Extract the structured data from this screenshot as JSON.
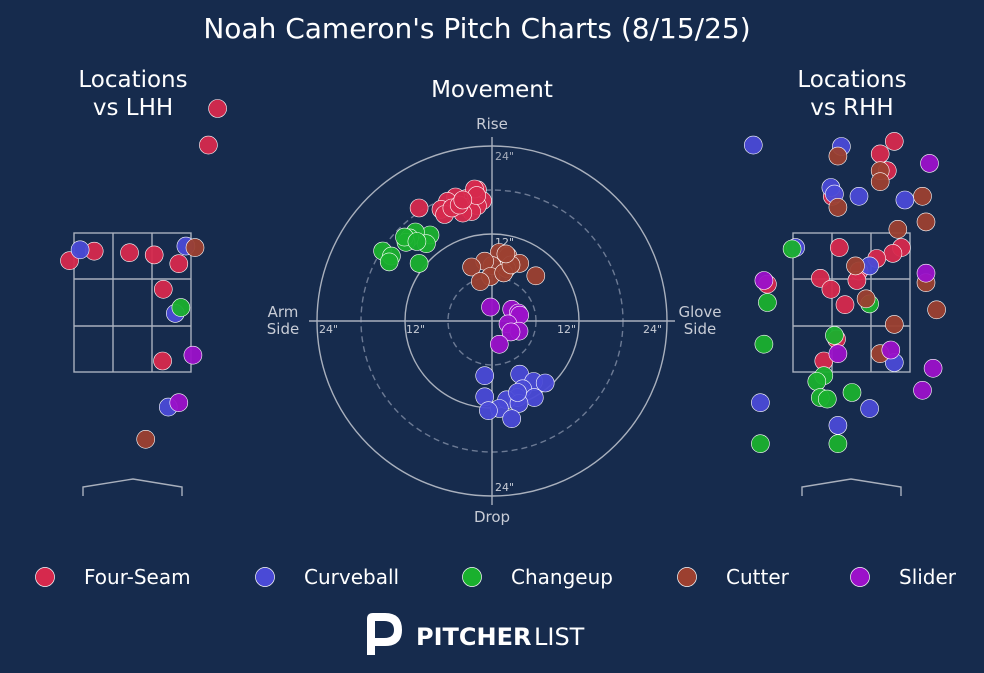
{
  "title": "Noah Cameron's Pitch Charts (8/15/25)",
  "panels": {
    "lhh": {
      "title_line1": "Locations",
      "title_line2": "vs LHH"
    },
    "movement": {
      "title": "Movement"
    },
    "rhh": {
      "title_line1": "Locations",
      "title_line2": "vs RHH"
    }
  },
  "movement_axes": {
    "top": "Rise",
    "bottom": "Drop",
    "left_line1": "Arm",
    "left_line2": "Side",
    "right_line1": "Glove",
    "right_line2": "Side",
    "ring_labels": {
      "top_24": "24\"",
      "top_12": "12\"",
      "bottom_24": "24\"",
      "left_24": "24\"",
      "left_12": "12\"",
      "right_12": "12\"",
      "right_24": "24\""
    }
  },
  "colors": {
    "Four-Seam": "#d6294d",
    "Curveball": "#4a4ad6",
    "Changeup": "#1ab02e",
    "Cutter": "#9c4030",
    "Slider": "#9b11c9"
  },
  "legend": [
    "Four-Seam",
    "Curveball",
    "Changeup",
    "Cutter",
    "Slider"
  ],
  "logo": {
    "bold": "PITCHER",
    "light": "LIST"
  },
  "chart_data": [
    {
      "type": "scatter",
      "title": "Locations vs LHH",
      "units": "feet (horizontal plate location, height)",
      "xlim": [
        -1.5,
        1.5
      ],
      "ylim": [
        0.2,
        5.2
      ],
      "strike_zone": {
        "x": [
          -0.83,
          0.83
        ],
        "y": [
          1.6,
          3.5
        ]
      },
      "points": [
        {
          "pitch": "Four-Seam",
          "x": 1.2,
          "y": 5.2
        },
        {
          "pitch": "Four-Seam",
          "x": 1.07,
          "y": 4.7
        },
        {
          "pitch": "Four-Seam",
          "x": -0.55,
          "y": 3.25
        },
        {
          "pitch": "Four-Seam",
          "x": -0.05,
          "y": 3.23
        },
        {
          "pitch": "Four-Seam",
          "x": 0.3,
          "y": 3.2
        },
        {
          "pitch": "Four-Seam",
          "x": -0.9,
          "y": 3.12
        },
        {
          "pitch": "Four-Seam",
          "x": 0.65,
          "y": 3.08
        },
        {
          "pitch": "Four-Seam",
          "x": 0.43,
          "y": 2.73
        },
        {
          "pitch": "Four-Seam",
          "x": 0.42,
          "y": 1.75
        },
        {
          "pitch": "Curveball",
          "x": -0.75,
          "y": 3.27
        },
        {
          "pitch": "Curveball",
          "x": 0.75,
          "y": 3.32
        },
        {
          "pitch": "Curveball",
          "x": 0.6,
          "y": 2.4
        },
        {
          "pitch": "Curveball",
          "x": 0.5,
          "y": 1.12
        },
        {
          "pitch": "Changeup",
          "x": 0.68,
          "y": 2.48
        },
        {
          "pitch": "Cutter",
          "x": 0.88,
          "y": 3.3
        },
        {
          "pitch": "Cutter",
          "x": 0.18,
          "y": 0.68
        },
        {
          "pitch": "Slider",
          "x": 0.85,
          "y": 1.83
        },
        {
          "pitch": "Slider",
          "x": 0.65,
          "y": 1.18
        }
      ]
    },
    {
      "type": "scatter",
      "title": "Movement",
      "units": "inches (horizontal break, induced vertical break)",
      "xlim": [
        -24,
        24
      ],
      "ylim": [
        -24,
        24
      ],
      "points": [
        {
          "pitch": "Four-Seam",
          "x": -2,
          "y": 18
        },
        {
          "pitch": "Four-Seam",
          "x": -2.3,
          "y": 17
        },
        {
          "pitch": "Four-Seam",
          "x": -1.3,
          "y": 16.5
        },
        {
          "pitch": "Four-Seam",
          "x": -3.5,
          "y": 16.8
        },
        {
          "pitch": "Four-Seam",
          "x": -4.3,
          "y": 16.3
        },
        {
          "pitch": "Four-Seam",
          "x": -5,
          "y": 17
        },
        {
          "pitch": "Four-Seam",
          "x": -6.1,
          "y": 16.4
        },
        {
          "pitch": "Four-Seam",
          "x": -7,
          "y": 15.3
        },
        {
          "pitch": "Four-Seam",
          "x": -6.5,
          "y": 14.6
        },
        {
          "pitch": "Four-Seam",
          "x": -3.5,
          "y": 15.6
        },
        {
          "pitch": "Four-Seam",
          "x": -2,
          "y": 15.8
        },
        {
          "pitch": "Four-Seam",
          "x": -2.8,
          "y": 15
        },
        {
          "pitch": "Four-Seam",
          "x": -4,
          "y": 14.8
        },
        {
          "pitch": "Four-Seam",
          "x": -5.5,
          "y": 15.5
        },
        {
          "pitch": "Four-Seam",
          "x": -4.5,
          "y": 15.9
        },
        {
          "pitch": "Four-Seam",
          "x": -10,
          "y": 15.5
        },
        {
          "pitch": "Four-Seam",
          "x": -2.4,
          "y": 18.1
        },
        {
          "pitch": "Four-Seam",
          "x": -2.1,
          "y": 17.2
        },
        {
          "pitch": "Four-Seam",
          "x": -4,
          "y": 16.6
        },
        {
          "pitch": "Changeup",
          "x": -8.5,
          "y": 11.8
        },
        {
          "pitch": "Changeup",
          "x": -10.5,
          "y": 12.2
        },
        {
          "pitch": "Changeup",
          "x": -11.3,
          "y": 11.4
        },
        {
          "pitch": "Changeup",
          "x": -11.8,
          "y": 10.8
        },
        {
          "pitch": "Changeup",
          "x": -12,
          "y": 11.5
        },
        {
          "pitch": "Changeup",
          "x": -9,
          "y": 10.6
        },
        {
          "pitch": "Changeup",
          "x": -10.3,
          "y": 10.9
        },
        {
          "pitch": "Changeup",
          "x": -15,
          "y": 9.6
        },
        {
          "pitch": "Changeup",
          "x": -13.8,
          "y": 8.9
        },
        {
          "pitch": "Changeup",
          "x": -14.1,
          "y": 8.1
        },
        {
          "pitch": "Changeup",
          "x": -10,
          "y": 7.9
        },
        {
          "pitch": "Cutter",
          "x": 1,
          "y": 9.4
        },
        {
          "pitch": "Cutter",
          "x": 2.2,
          "y": 8.9
        },
        {
          "pitch": "Cutter",
          "x": 3.8,
          "y": 7.9
        },
        {
          "pitch": "Cutter",
          "x": 2,
          "y": 7.2
        },
        {
          "pitch": "Cutter",
          "x": 0,
          "y": 7.6
        },
        {
          "pitch": "Cutter",
          "x": -1,
          "y": 8.2
        },
        {
          "pitch": "Cutter",
          "x": -0.2,
          "y": 6.1
        },
        {
          "pitch": "Cutter",
          "x": 1.6,
          "y": 6.6
        },
        {
          "pitch": "Cutter",
          "x": -2.8,
          "y": 7.4
        },
        {
          "pitch": "Cutter",
          "x": -1.6,
          "y": 5.4
        },
        {
          "pitch": "Cutter",
          "x": 6,
          "y": 6.2
        },
        {
          "pitch": "Cutter",
          "x": 2.6,
          "y": 7.7
        },
        {
          "pitch": "Cutter",
          "x": 1.9,
          "y": 9.2
        },
        {
          "pitch": "Slider",
          "x": -0.2,
          "y": 1.9
        },
        {
          "pitch": "Slider",
          "x": 2.7,
          "y": 1.6
        },
        {
          "pitch": "Slider",
          "x": 3.6,
          "y": 1.1
        },
        {
          "pitch": "Slider",
          "x": 3.8,
          "y": 0.8
        },
        {
          "pitch": "Slider",
          "x": 2.2,
          "y": -0.4
        },
        {
          "pitch": "Slider",
          "x": 3.7,
          "y": -1.4
        },
        {
          "pitch": "Slider",
          "x": 2.6,
          "y": -1.5
        },
        {
          "pitch": "Slider",
          "x": 1,
          "y": -3.2
        },
        {
          "pitch": "Curveball",
          "x": -1,
          "y": -7.5
        },
        {
          "pitch": "Curveball",
          "x": 3.8,
          "y": -7.3
        },
        {
          "pitch": "Curveball",
          "x": 5.7,
          "y": -8.3
        },
        {
          "pitch": "Curveball",
          "x": 7.3,
          "y": -8.5
        },
        {
          "pitch": "Curveball",
          "x": 4.2,
          "y": -9.3
        },
        {
          "pitch": "Curveball",
          "x": 3.5,
          "y": -10.5
        },
        {
          "pitch": "Curveball",
          "x": 5.8,
          "y": -10.5
        },
        {
          "pitch": "Curveball",
          "x": 2,
          "y": -10.8
        },
        {
          "pitch": "Curveball",
          "x": -1,
          "y": -10.4
        },
        {
          "pitch": "Curveball",
          "x": 3.7,
          "y": -11.3
        },
        {
          "pitch": "Curveball",
          "x": 1,
          "y": -12
        },
        {
          "pitch": "Curveball",
          "x": -0.5,
          "y": -12.3
        },
        {
          "pitch": "Curveball",
          "x": 2.7,
          "y": -13.4
        },
        {
          "pitch": "Curveball",
          "x": 3.5,
          "y": -9.8
        }
      ]
    },
    {
      "type": "scatter",
      "title": "Locations vs RHH",
      "units": "feet (horizontal plate location, height)",
      "xlim": [
        -1.5,
        1.5
      ],
      "ylim": [
        0.2,
        5.2
      ],
      "strike_zone": {
        "x": [
          -0.83,
          0.83
        ],
        "y": [
          1.6,
          3.5
        ]
      },
      "points": [
        {
          "pitch": "Four-Seam",
          "x": 0.6,
          "y": 4.75
        },
        {
          "pitch": "Four-Seam",
          "x": 0.4,
          "y": 4.58
        },
        {
          "pitch": "Four-Seam",
          "x": 0.5,
          "y": 4.35
        },
        {
          "pitch": "Four-Seam",
          "x": -0.28,
          "y": 4.0
        },
        {
          "pitch": "Four-Seam",
          "x": -0.18,
          "y": 3.3
        },
        {
          "pitch": "Four-Seam",
          "x": 0.7,
          "y": 3.3
        },
        {
          "pitch": "Four-Seam",
          "x": 0.58,
          "y": 3.22
        },
        {
          "pitch": "Four-Seam",
          "x": 0.35,
          "y": 3.15
        },
        {
          "pitch": "Four-Seam",
          "x": 0.1,
          "y": 2.98
        },
        {
          "pitch": "Four-Seam",
          "x": 0.07,
          "y": 2.85
        },
        {
          "pitch": "Four-Seam",
          "x": -1.2,
          "y": 2.8
        },
        {
          "pitch": "Four-Seam",
          "x": -0.45,
          "y": 2.88
        },
        {
          "pitch": "Four-Seam",
          "x": -0.3,
          "y": 2.73
        },
        {
          "pitch": "Four-Seam",
          "x": -0.1,
          "y": 2.52
        },
        {
          "pitch": "Four-Seam",
          "x": -0.22,
          "y": 2.05
        },
        {
          "pitch": "Four-Seam",
          "x": -0.4,
          "y": 1.75
        },
        {
          "pitch": "Curveball",
          "x": -1.4,
          "y": 4.7
        },
        {
          "pitch": "Curveball",
          "x": -0.15,
          "y": 4.68
        },
        {
          "pitch": "Curveball",
          "x": -0.3,
          "y": 4.12
        },
        {
          "pitch": "Curveball",
          "x": -0.25,
          "y": 4.03
        },
        {
          "pitch": "Curveball",
          "x": 0.1,
          "y": 4.0
        },
        {
          "pitch": "Curveball",
          "x": 0.75,
          "y": 3.95
        },
        {
          "pitch": "Curveball",
          "x": -0.8,
          "y": 3.3
        },
        {
          "pitch": "Curveball",
          "x": 0.25,
          "y": 3.05
        },
        {
          "pitch": "Curveball",
          "x": 0.6,
          "y": 1.73
        },
        {
          "pitch": "Curveball",
          "x": -1.3,
          "y": 1.18
        },
        {
          "pitch": "Curveball",
          "x": 0.25,
          "y": 1.1
        },
        {
          "pitch": "Curveball",
          "x": -0.2,
          "y": 0.87
        },
        {
          "pitch": "Changeup",
          "x": -0.85,
          "y": 3.28
        },
        {
          "pitch": "Changeup",
          "x": -1.2,
          "y": 2.55
        },
        {
          "pitch": "Changeup",
          "x": -1.25,
          "y": 1.98
        },
        {
          "pitch": "Changeup",
          "x": 0.25,
          "y": 2.53
        },
        {
          "pitch": "Changeup",
          "x": -0.25,
          "y": 2.1
        },
        {
          "pitch": "Changeup",
          "x": -0.4,
          "y": 1.55
        },
        {
          "pitch": "Changeup",
          "x": -0.5,
          "y": 1.47
        },
        {
          "pitch": "Changeup",
          "x": -0.45,
          "y": 1.25
        },
        {
          "pitch": "Changeup",
          "x": 0.0,
          "y": 1.32
        },
        {
          "pitch": "Changeup",
          "x": -0.35,
          "y": 1.23
        },
        {
          "pitch": "Changeup",
          "x": -1.3,
          "y": 0.62
        },
        {
          "pitch": "Changeup",
          "x": -0.2,
          "y": 0.62
        },
        {
          "pitch": "Cutter",
          "x": -0.2,
          "y": 4.55
        },
        {
          "pitch": "Cutter",
          "x": 0.4,
          "y": 4.35
        },
        {
          "pitch": "Cutter",
          "x": 0.4,
          "y": 4.2
        },
        {
          "pitch": "Cutter",
          "x": 1.0,
          "y": 4.0
        },
        {
          "pitch": "Cutter",
          "x": -0.2,
          "y": 3.85
        },
        {
          "pitch": "Cutter",
          "x": 1.05,
          "y": 3.65
        },
        {
          "pitch": "Cutter",
          "x": 0.65,
          "y": 3.55
        },
        {
          "pitch": "Cutter",
          "x": 0.05,
          "y": 3.05
        },
        {
          "pitch": "Cutter",
          "x": 1.05,
          "y": 2.82
        },
        {
          "pitch": "Cutter",
          "x": 0.2,
          "y": 2.6
        },
        {
          "pitch": "Cutter",
          "x": 1.2,
          "y": 2.45
        },
        {
          "pitch": "Cutter",
          "x": 0.6,
          "y": 2.25
        },
        {
          "pitch": "Cutter",
          "x": 0.4,
          "y": 1.85
        },
        {
          "pitch": "Slider",
          "x": 1.1,
          "y": 4.45
        },
        {
          "pitch": "Slider",
          "x": -1.25,
          "y": 2.85
        },
        {
          "pitch": "Slider",
          "x": 1.05,
          "y": 2.95
        },
        {
          "pitch": "Slider",
          "x": 0.55,
          "y": 1.9
        },
        {
          "pitch": "Slider",
          "x": -0.2,
          "y": 1.85
        },
        {
          "pitch": "Slider",
          "x": 1.15,
          "y": 1.65
        },
        {
          "pitch": "Slider",
          "x": 1.0,
          "y": 1.35
        }
      ]
    }
  ]
}
